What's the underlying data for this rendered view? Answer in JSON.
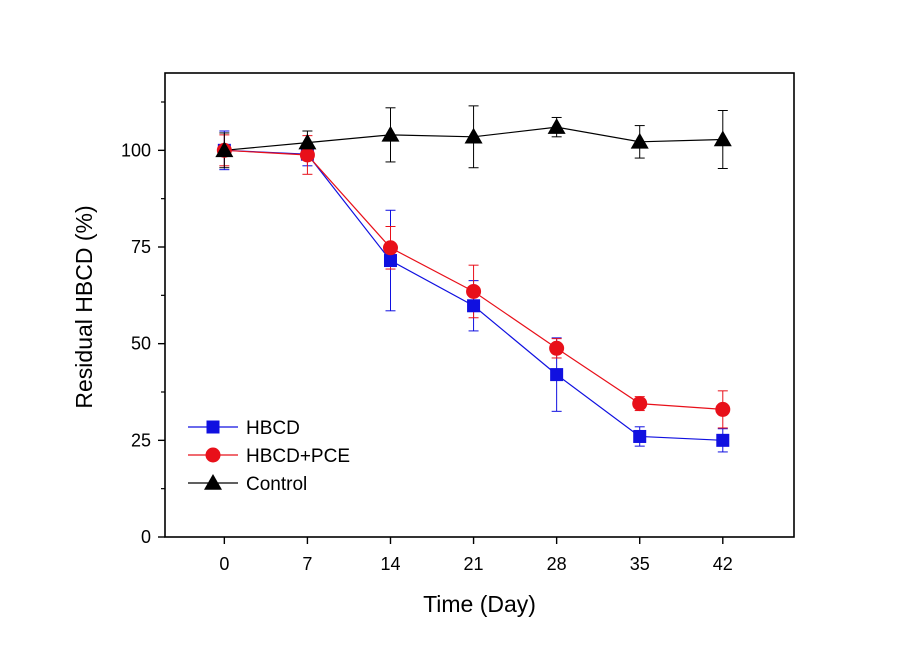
{
  "chart_data": {
    "type": "line",
    "title": "",
    "xlabel": "Time (Day)",
    "ylabel": "Residual HBCD (%)",
    "x": [
      0,
      7,
      14,
      21,
      28,
      35,
      42
    ],
    "xticks": [
      "0",
      "7",
      "14",
      "21",
      "28",
      "35",
      "42"
    ],
    "xlim": [
      -5,
      48
    ],
    "yticks": [
      0,
      25,
      50,
      75,
      100
    ],
    "ytick_labels": [
      "0",
      "25",
      "50",
      "75",
      "100"
    ],
    "ylim": [
      0,
      120
    ],
    "grid": false,
    "legend_position": "bottom-left",
    "series": [
      {
        "name": "HBCD",
        "color": "#1010e0",
        "marker": "square",
        "values": [
          100,
          99,
          71.5,
          59.8,
          42,
          26,
          25
        ],
        "errors": [
          5,
          3,
          13,
          6.5,
          9.5,
          2.5,
          3
        ]
      },
      {
        "name": "HBCD+PCE",
        "color": "#e8101a",
        "marker": "circle",
        "values": [
          100,
          98.8,
          74.8,
          63.5,
          48.8,
          34.5,
          33
        ],
        "errors": [
          4,
          5,
          5.5,
          6.8,
          2.5,
          1.8,
          4.8
        ]
      },
      {
        "name": "Control",
        "color": "#000000",
        "marker": "triangle",
        "values": [
          100,
          102,
          104,
          103.5,
          106,
          102.2,
          102.8
        ],
        "errors": [
          4.5,
          3,
          7,
          8,
          2.5,
          4.2,
          7.5
        ]
      }
    ]
  }
}
